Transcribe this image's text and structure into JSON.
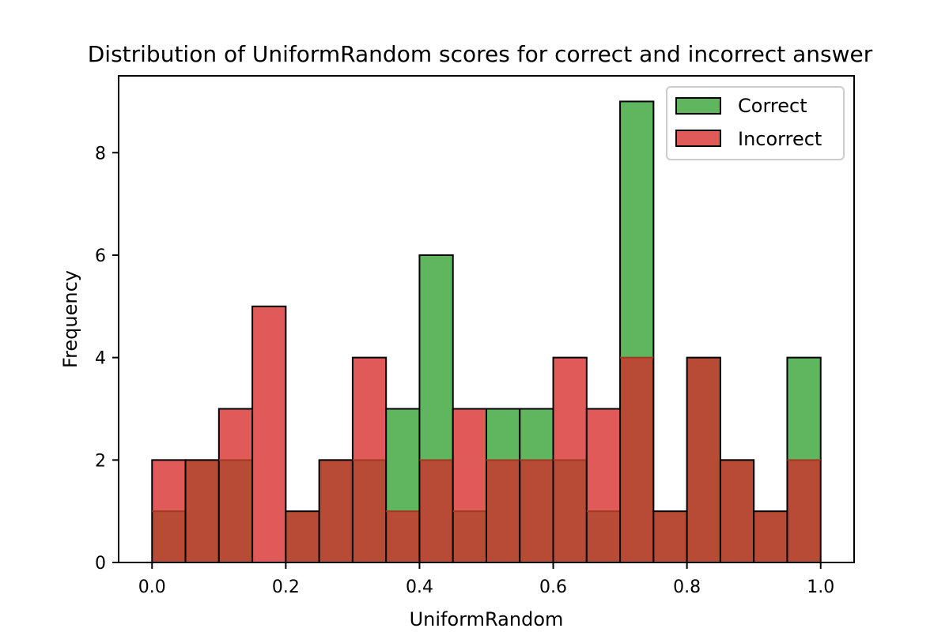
{
  "chart_data": {
    "type": "bar",
    "title": "Distribution of UniformRandom scores for correct and incorrect answer",
    "xlabel": "UniformRandom",
    "ylabel": "Frequency",
    "xlim": [
      -0.05,
      1.05
    ],
    "ylim": [
      0,
      9.5
    ],
    "xticks": [
      0.0,
      0.2,
      0.4,
      0.6,
      0.8,
      1.0
    ],
    "xtick_labels": [
      "0.0",
      "0.2",
      "0.4",
      "0.6",
      "0.8",
      "1.0"
    ],
    "yticks": [
      0,
      2,
      4,
      6,
      8
    ],
    "ytick_labels": [
      "0",
      "2",
      "4",
      "6",
      "8"
    ],
    "bin_edges": [
      0.0,
      0.05,
      0.1,
      0.15,
      0.2,
      0.25,
      0.3,
      0.35,
      0.4,
      0.45,
      0.5,
      0.55,
      0.6,
      0.65,
      0.7,
      0.75,
      0.8,
      0.85,
      0.9,
      0.95,
      1.0
    ],
    "grid": false,
    "legend_position": "top-right",
    "series": [
      {
        "name": "Correct",
        "color": "#5fb65f",
        "values": [
          1,
          2,
          2,
          0,
          1,
          2,
          2,
          3,
          6,
          1,
          3,
          3,
          2,
          1,
          9,
          1,
          4,
          2,
          1,
          4
        ]
      },
      {
        "name": "Incorrect",
        "color": "#e05a5a",
        "values": [
          2,
          2,
          3,
          5,
          1,
          2,
          4,
          1,
          2,
          3,
          2,
          2,
          4,
          3,
          4,
          1,
          4,
          2,
          1,
          2
        ]
      }
    ],
    "overlap_color": "#b84b35"
  }
}
